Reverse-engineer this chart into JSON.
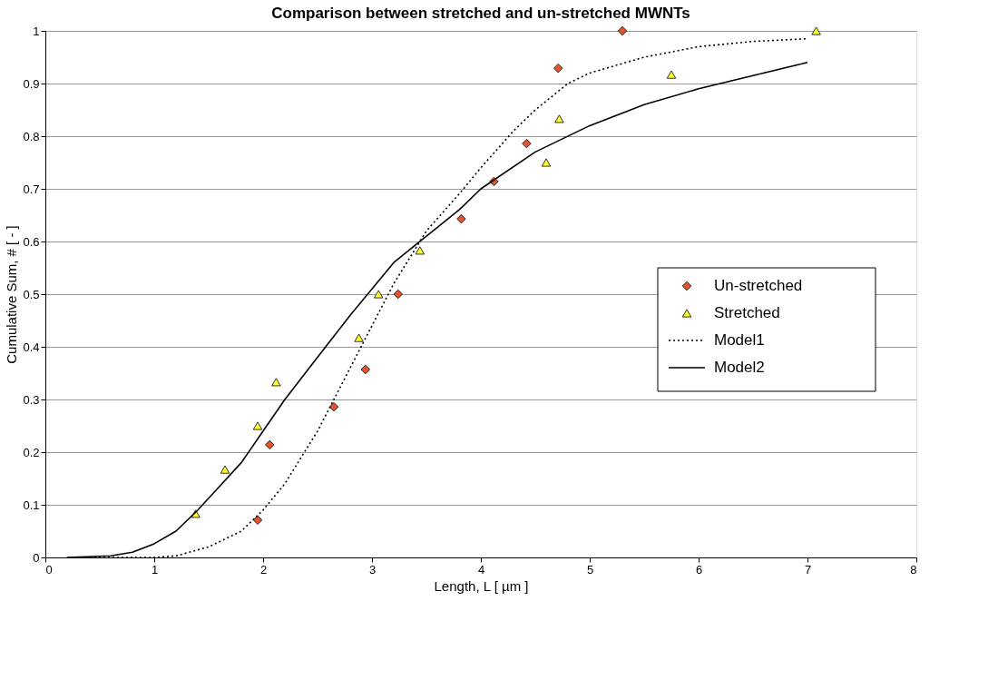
{
  "chart_data": {
    "type": "scatter",
    "title": "Comparison between stretched and un-stretched MWNTs",
    "xlabel": "Length, L   [ µm ]",
    "ylabel": "Cumulative Sum, #    [ - ]",
    "xlim": [
      0,
      8
    ],
    "xticks": [
      0,
      1,
      2,
      3,
      4,
      5,
      6,
      7,
      8
    ],
    "ylim": [
      0,
      1
    ],
    "yticks": [
      0,
      0.1,
      0.2,
      0.3,
      0.4,
      0.5,
      0.6,
      0.7,
      0.8,
      0.9,
      1
    ],
    "grid": "y",
    "legend": "right",
    "series": [
      {
        "name": "Un-stretched",
        "marker": "diamond",
        "color": "#e0552b",
        "x": [
          1.95,
          2.06,
          2.65,
          2.94,
          3.24,
          3.82,
          4.12,
          4.42,
          4.71,
          5.3
        ],
        "values": [
          0.071,
          0.214,
          0.286,
          0.357,
          0.5,
          0.643,
          0.714,
          0.786,
          0.929,
          1.0
        ]
      },
      {
        "name": "Stretched",
        "marker": "triangle",
        "color": "#ffff33",
        "x": [
          1.38,
          1.65,
          1.95,
          2.12,
          2.88,
          3.06,
          3.44,
          4.6,
          4.72,
          5.75,
          7.08
        ],
        "values": [
          0.083,
          0.167,
          0.25,
          0.333,
          0.417,
          0.5,
          0.583,
          0.75,
          0.833,
          0.917,
          1.0
        ]
      },
      {
        "name": "Model1",
        "type": "line",
        "line_style": "dotted",
        "marker": "none",
        "color": "#000000",
        "x": [
          0.2,
          1,
          1.2,
          1.5,
          1.8,
          2,
          2.2,
          2.5,
          2.8,
          3,
          3.2,
          3.5,
          3.8,
          4,
          4.3,
          4.5,
          4.8,
          5,
          5.5,
          6,
          6.5,
          7
        ],
        "values": [
          0,
          0,
          0.003,
          0.02,
          0.05,
          0.09,
          0.14,
          0.24,
          0.36,
          0.44,
          0.52,
          0.62,
          0.69,
          0.74,
          0.81,
          0.85,
          0.9,
          0.92,
          0.95,
          0.97,
          0.98,
          0.985
        ]
      },
      {
        "name": "Model2",
        "type": "line",
        "line_style": "solid",
        "marker": "none",
        "color": "#000000",
        "x": [
          0.2,
          0.6,
          0.8,
          1,
          1.2,
          1.4,
          1.6,
          1.8,
          2,
          2.2,
          2.5,
          2.8,
          3,
          3.2,
          3.5,
          3.8,
          4,
          4.5,
          5,
          5.5,
          6,
          6.5,
          7
        ],
        "values": [
          0,
          0.003,
          0.01,
          0.026,
          0.05,
          0.09,
          0.135,
          0.18,
          0.24,
          0.3,
          0.38,
          0.46,
          0.51,
          0.56,
          0.61,
          0.66,
          0.7,
          0.77,
          0.82,
          0.86,
          0.89,
          0.915,
          0.94
        ]
      }
    ]
  }
}
